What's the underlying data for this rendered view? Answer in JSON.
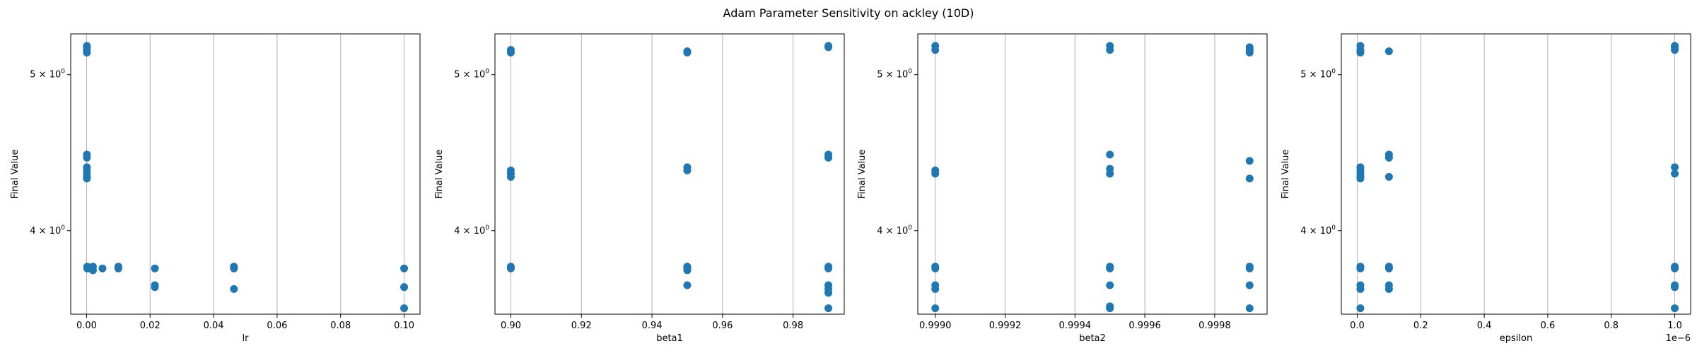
{
  "figure": {
    "title": "Adam Parameter Sensitivity on ackley (10D)",
    "marker_color": "#1f77b4",
    "grid_color": "#b0b0b0"
  },
  "chart_data": [
    {
      "type": "scatter",
      "xlabel": "lr",
      "ylabel": "Final Value",
      "xscale": "linear",
      "yscale": "log",
      "xlim": [
        -0.005,
        0.105
      ],
      "ylim": [
        3.55,
        5.3
      ],
      "xticks": [
        0.0,
        0.02,
        0.04,
        0.06,
        0.08,
        0.1
      ],
      "xtick_labels": [
        "0.00",
        "0.02",
        "0.04",
        "0.06",
        "0.08",
        "0.10"
      ],
      "x_offset_label": "",
      "yticks": [
        4,
        5
      ],
      "ytick_labels": [
        "4 × 10",
        "5 × 10"
      ],
      "ytick_exponent": "0",
      "grid": "x",
      "x": [
        0.0001,
        0.0001,
        0.0001,
        0.0001,
        0.0001,
        0.0001,
        0.0001,
        0.0001,
        0.0001,
        0.0001,
        0.0001,
        0.0002,
        0.0002,
        0.001,
        0.002,
        0.002,
        0.005,
        0.01,
        0.01,
        0.0215,
        0.0215,
        0.0215,
        0.0464,
        0.0464,
        0.0464,
        0.1,
        0.1,
        0.1
      ],
      "y": [
        5.2,
        5.18,
        5.16,
        5.21,
        4.46,
        4.44,
        4.38,
        4.36,
        4.34,
        4.32,
        4.31,
        3.8,
        3.79,
        3.79,
        3.8,
        3.78,
        3.79,
        3.79,
        3.8,
        3.79,
        3.7,
        3.69,
        3.8,
        3.79,
        3.68,
        3.79,
        3.69,
        3.58
      ]
    },
    {
      "type": "scatter",
      "xlabel": "beta1",
      "ylabel": "Final Value",
      "xscale": "linear",
      "yscale": "log",
      "xlim": [
        0.8955,
        0.9945
      ],
      "ylim": [
        3.55,
        5.3
      ],
      "xticks": [
        0.9,
        0.92,
        0.94,
        0.96,
        0.98
      ],
      "xtick_labels": [
        "0.90",
        "0.92",
        "0.94",
        "0.96",
        "0.98"
      ],
      "x_offset_label": "",
      "yticks": [
        4,
        5
      ],
      "ytick_labels": [
        "4 × 10",
        "5 × 10"
      ],
      "ytick_exponent": "0",
      "grid": "x",
      "x": [
        0.9,
        0.9,
        0.9,
        0.9,
        0.9,
        0.9,
        0.9,
        0.95,
        0.95,
        0.95,
        0.95,
        0.95,
        0.95,
        0.95,
        0.95,
        0.99,
        0.99,
        0.99,
        0.99,
        0.99,
        0.99,
        0.99,
        0.99,
        0.99,
        0.99
      ],
      "y": [
        5.18,
        5.16,
        4.36,
        4.34,
        4.32,
        3.8,
        3.79,
        5.17,
        5.16,
        4.38,
        4.36,
        3.8,
        3.79,
        3.78,
        3.7,
        5.21,
        5.2,
        4.46,
        4.44,
        3.8,
        3.79,
        3.7,
        3.68,
        3.66,
        3.58
      ]
    },
    {
      "type": "scatter",
      "xlabel": "beta2",
      "ylabel": "Final Value",
      "xscale": "linear",
      "yscale": "log",
      "xlim": [
        0.99895,
        0.99995
      ],
      "ylim": [
        3.55,
        5.3
      ],
      "xticks": [
        0.999,
        0.9992,
        0.9994,
        0.9996,
        0.9998
      ],
      "xtick_labels": [
        "0.9990",
        "0.9992",
        "0.9994",
        "0.9996",
        "0.9998"
      ],
      "x_offset_label": "",
      "yticks": [
        4,
        5
      ],
      "ytick_labels": [
        "4 × 10",
        "5 × 10"
      ],
      "ytick_exponent": "0",
      "grid": "x",
      "x": [
        0.999,
        0.999,
        0.999,
        0.999,
        0.999,
        0.999,
        0.999,
        0.999,
        0.999,
        0.9995,
        0.9995,
        0.9995,
        0.9995,
        0.9995,
        0.9995,
        0.9995,
        0.9995,
        0.9995,
        0.9995,
        0.9999,
        0.9999,
        0.9999,
        0.9999,
        0.9999,
        0.9999,
        0.9999,
        0.9999,
        0.9999
      ],
      "y": [
        5.21,
        5.18,
        4.36,
        4.34,
        3.8,
        3.79,
        3.7,
        3.68,
        3.58,
        5.21,
        5.18,
        4.46,
        4.37,
        4.34,
        3.8,
        3.79,
        3.7,
        3.59,
        3.58,
        5.2,
        5.18,
        5.16,
        4.42,
        4.31,
        3.8,
        3.79,
        3.7,
        3.58
      ]
    },
    {
      "type": "scatter",
      "xlabel": "epsilon",
      "ylabel": "Final Value",
      "xscale": "linear",
      "yscale": "log",
      "xlim": [
        -0.05,
        1.05
      ],
      "ylim": [
        3.55,
        5.3
      ],
      "xticks": [
        0.0,
        0.2,
        0.4,
        0.6,
        0.8,
        1.0
      ],
      "xtick_labels": [
        "0.0",
        "0.2",
        "0.4",
        "0.6",
        "0.8",
        "1.0"
      ],
      "x_offset_label": "1e−6",
      "yticks": [
        4,
        5
      ],
      "ytick_labels": [
        "4 × 10",
        "5 × 10"
      ],
      "ytick_exponent": "0",
      "grid": "x",
      "x": [
        0.01,
        0.01,
        0.01,
        0.01,
        0.01,
        0.01,
        0.01,
        0.01,
        0.01,
        0.01,
        0.01,
        0.01,
        0.01,
        0.1,
        0.1,
        0.1,
        0.1,
        0.1,
        0.1,
        0.1,
        0.1,
        1.0,
        1.0,
        1.0,
        1.0,
        1.0,
        1.0,
        1.0,
        1.0,
        1.0,
        1.0
      ],
      "y": [
        5.21,
        5.18,
        5.16,
        4.38,
        4.36,
        4.34,
        4.32,
        4.31,
        3.8,
        3.79,
        3.7,
        3.68,
        3.58,
        5.17,
        4.46,
        4.44,
        4.32,
        3.8,
        3.79,
        3.7,
        3.68,
        5.21,
        5.2,
        5.18,
        4.38,
        4.34,
        3.8,
        3.79,
        3.7,
        3.69,
        3.58
      ]
    }
  ]
}
